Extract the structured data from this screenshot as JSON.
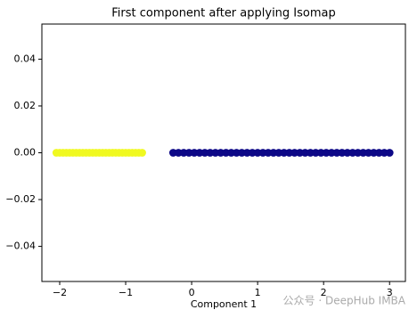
{
  "chart_data": {
    "type": "scatter",
    "title": "First component after applying Isomap",
    "xlabel": "Component 1",
    "watermark": "公众号 · DeepHub IMBA",
    "xlim": [
      -2.27,
      3.24
    ],
    "ylim": [
      -0.055,
      0.055
    ],
    "xticks": [
      {
        "value": -2,
        "label": "−2"
      },
      {
        "value": -1,
        "label": "−1"
      },
      0,
      1,
      2,
      3
    ],
    "yticks": [
      {
        "value": -0.04,
        "label": "−0.04"
      },
      {
        "value": -0.02,
        "label": "−0.02"
      },
      {
        "value": 0,
        "label": "0.00"
      },
      {
        "value": 0.02,
        "label": "0.02"
      },
      {
        "value": 0.04,
        "label": "0.04"
      }
    ],
    "series": [
      {
        "color": "#f0f921",
        "x": [
          -2.05,
          -2.0,
          -1.95,
          -1.9,
          -1.85,
          -1.8,
          -1.75,
          -1.7,
          -1.65,
          -1.6,
          -1.55,
          -1.5,
          -1.45,
          -1.4,
          -1.35,
          -1.3,
          -1.25,
          -1.2,
          -1.15,
          -1.1,
          -1.05,
          -1.0,
          -0.95,
          -0.9,
          -0.85,
          -0.8,
          -0.75
        ],
        "values": [
          0,
          0,
          0,
          0,
          0,
          0,
          0,
          0,
          0,
          0,
          0,
          0,
          0,
          0,
          0,
          0,
          0,
          0,
          0,
          0,
          0,
          0,
          0,
          0,
          0,
          0,
          0
        ]
      },
      {
        "color": "#0d0887",
        "x": [
          -0.28,
          -0.2,
          -0.12,
          -0.04,
          0.04,
          0.12,
          0.2,
          0.28,
          0.36,
          0.44,
          0.52,
          0.6,
          0.68,
          0.76,
          0.84,
          0.92,
          1.0,
          1.08,
          1.16,
          1.24,
          1.32,
          1.4,
          1.48,
          1.56,
          1.64,
          1.72,
          1.8,
          1.88,
          1.96,
          2.04,
          2.12,
          2.2,
          2.28,
          2.36,
          2.44,
          2.52,
          2.6,
          2.68,
          2.76,
          2.84,
          2.92,
          3.0
        ],
        "values": [
          0,
          0,
          0,
          0,
          0,
          0,
          0,
          0,
          0,
          0,
          0,
          0,
          0,
          0,
          0,
          0,
          0,
          0,
          0,
          0,
          0,
          0,
          0,
          0,
          0,
          0,
          0,
          0,
          0,
          0,
          0,
          0,
          0,
          0,
          0,
          0,
          0,
          0,
          0,
          0,
          0,
          0
        ]
      }
    ]
  }
}
